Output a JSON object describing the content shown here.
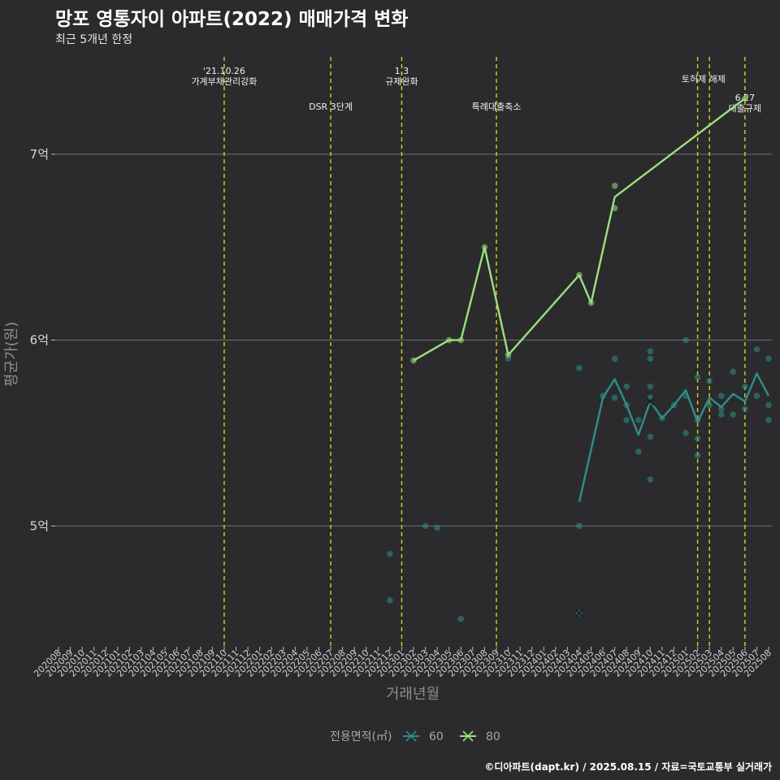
{
  "chart_data": {
    "type": "line",
    "title": "망포 영통자이 아파트(2022) 매매가격 변화",
    "subtitle": "최근 5개년 한정",
    "xlabel": "거래년월",
    "ylabel": "평균가(원)",
    "ylim": [
      4.35,
      7.55
    ],
    "y_ticks": [
      {
        "value": 5,
        "label": "5억"
      },
      {
        "value": 6,
        "label": "6억"
      },
      {
        "value": 7,
        "label": "7억"
      }
    ],
    "categories": [
      "202008",
      "202009",
      "202010",
      "202011",
      "202012",
      "202101",
      "202102",
      "202103",
      "202104",
      "202105",
      "202106",
      "202107",
      "202108",
      "202109",
      "202110",
      "202111",
      "202112",
      "202201",
      "202202",
      "202203",
      "202204",
      "202205",
      "202206",
      "202207",
      "202208",
      "202209",
      "202210",
      "202211",
      "202212",
      "202301",
      "202302",
      "202303",
      "202304",
      "202305",
      "202306",
      "202307",
      "202308",
      "202309",
      "202310",
      "202311",
      "202312",
      "202401",
      "202402",
      "202403",
      "202404",
      "202405",
      "202406",
      "202407",
      "202408",
      "202409",
      "202410",
      "202411",
      "202412",
      "202501",
      "202502",
      "202503",
      "202504",
      "202505",
      "202506",
      "202507",
      "202508"
    ],
    "grid": true,
    "legend": {
      "title": "전용면적(㎡)",
      "placement": "bottom",
      "entries": [
        "60",
        "80"
      ]
    },
    "series": [
      {
        "name": "60",
        "color": "#2e8f8a",
        "line": [
          {
            "x": "202404",
            "y": 5.13
          },
          {
            "x": "202406",
            "y": 5.69
          },
          {
            "x": "202407",
            "y": 5.79
          },
          {
            "x": "202408",
            "y": 5.65
          },
          {
            "x": "202409",
            "y": 5.49
          },
          {
            "x": "202410",
            "y": 5.67
          },
          {
            "x": "202411",
            "y": 5.58
          },
          {
            "x": "202412",
            "y": 5.65
          },
          {
            "x": "202501",
            "y": 5.73
          },
          {
            "x": "202502",
            "y": 5.56
          },
          {
            "x": "202503",
            "y": 5.69
          },
          {
            "x": "202504",
            "y": 5.64
          },
          {
            "x": "202505",
            "y": 5.71
          },
          {
            "x": "202506",
            "y": 5.67
          },
          {
            "x": "202507",
            "y": 5.82
          },
          {
            "x": "202508",
            "y": 5.7
          }
        ],
        "points": [
          {
            "x": "202212",
            "y": 4.85
          },
          {
            "x": "202212",
            "y": 4.6
          },
          {
            "x": "202303",
            "y": 5.0
          },
          {
            "x": "202304",
            "y": 4.99
          },
          {
            "x": "202306",
            "y": 4.5
          },
          {
            "x": "202310",
            "y": 5.9
          },
          {
            "x": "202404",
            "y": 5.85
          },
          {
            "x": "202404",
            "y": 5.0
          },
          {
            "x": "202404",
            "y": 4.53
          },
          {
            "x": "202406",
            "y": 5.7
          },
          {
            "x": "202407",
            "y": 5.9
          },
          {
            "x": "202407",
            "y": 5.69
          },
          {
            "x": "202408",
            "y": 5.75
          },
          {
            "x": "202408",
            "y": 5.65
          },
          {
            "x": "202408",
            "y": 5.57
          },
          {
            "x": "202409",
            "y": 5.57
          },
          {
            "x": "202409",
            "y": 5.4
          },
          {
            "x": "202410",
            "y": 5.94
          },
          {
            "x": "202410",
            "y": 5.9
          },
          {
            "x": "202410",
            "y": 5.75
          },
          {
            "x": "202410",
            "y": 5.69
          },
          {
            "x": "202410",
            "y": 5.48
          },
          {
            "x": "202410",
            "y": 5.25
          },
          {
            "x": "202411",
            "y": 5.58
          },
          {
            "x": "202412",
            "y": 5.65
          },
          {
            "x": "202501",
            "y": 6.0
          },
          {
            "x": "202501",
            "y": 5.7
          },
          {
            "x": "202501",
            "y": 5.5
          },
          {
            "x": "202502",
            "y": 5.8
          },
          {
            "x": "202502",
            "y": 5.57
          },
          {
            "x": "202502",
            "y": 5.47
          },
          {
            "x": "202502",
            "y": 5.38
          },
          {
            "x": "202503",
            "y": 5.78
          },
          {
            "x": "202503",
            "y": 5.65
          },
          {
            "x": "202504",
            "y": 5.7
          },
          {
            "x": "202504",
            "y": 5.63
          },
          {
            "x": "202504",
            "y": 5.6
          },
          {
            "x": "202505",
            "y": 5.83
          },
          {
            "x": "202505",
            "y": 5.6
          },
          {
            "x": "202506",
            "y": 5.75
          },
          {
            "x": "202506",
            "y": 5.63
          },
          {
            "x": "202507",
            "y": 5.95
          },
          {
            "x": "202507",
            "y": 5.7
          },
          {
            "x": "202508",
            "y": 5.9
          },
          {
            "x": "202508",
            "y": 5.65
          },
          {
            "x": "202508",
            "y": 5.57
          }
        ],
        "crosses": [
          {
            "x": "202404",
            "y": 4.53
          },
          {
            "x": "202410",
            "y": 5.67
          }
        ]
      },
      {
        "name": "80",
        "color": "#9be07f",
        "line": [
          {
            "x": "202302",
            "y": 5.89
          },
          {
            "x": "202305",
            "y": 6.0
          },
          {
            "x": "202306",
            "y": 6.0
          },
          {
            "x": "202308",
            "y": 6.5
          },
          {
            "x": "202310",
            "y": 5.92
          },
          {
            "x": "202404",
            "y": 6.35
          },
          {
            "x": "202405",
            "y": 6.2
          },
          {
            "x": "202407",
            "y": 6.77
          },
          {
            "x": "202506",
            "y": 7.3
          }
        ],
        "points": [
          {
            "x": "202302",
            "y": 5.89
          },
          {
            "x": "202305",
            "y": 6.0
          },
          {
            "x": "202306",
            "y": 6.0
          },
          {
            "x": "202308",
            "y": 6.5
          },
          {
            "x": "202310",
            "y": 5.92
          },
          {
            "x": "202404",
            "y": 6.35
          },
          {
            "x": "202405",
            "y": 6.2
          },
          {
            "x": "202407",
            "y": 6.83
          },
          {
            "x": "202407",
            "y": 6.71
          },
          {
            "x": "202506",
            "y": 7.3
          }
        ],
        "crosses": []
      }
    ],
    "events": [
      {
        "x": "202110",
        "label_lines": [
          "'21.10.26",
          "가계부채관리강화"
        ],
        "row": 0
      },
      {
        "x": "202207",
        "label_lines": [
          "DSR 3단계"
        ],
        "row": 2
      },
      {
        "x": "202301",
        "label_lines": [
          "1.3",
          "규제완화"
        ],
        "row": 0
      },
      {
        "x": "202309",
        "label_lines": [
          "특례대출축소"
        ],
        "row": 2
      },
      {
        "x": "202502",
        "label_lines": [
          "토허제 해제"
        ],
        "row": 1,
        "anchor_offset": 0.5
      },
      {
        "x": "202503",
        "label_lines": [],
        "row": 1
      },
      {
        "x": "202506",
        "label_lines": [
          "6.27",
          "대출규제"
        ],
        "row": 3
      }
    ]
  },
  "caption": "©디아파트(dapt.kr) / 2025.08.15 / 자료=국토교통부 실거래가"
}
